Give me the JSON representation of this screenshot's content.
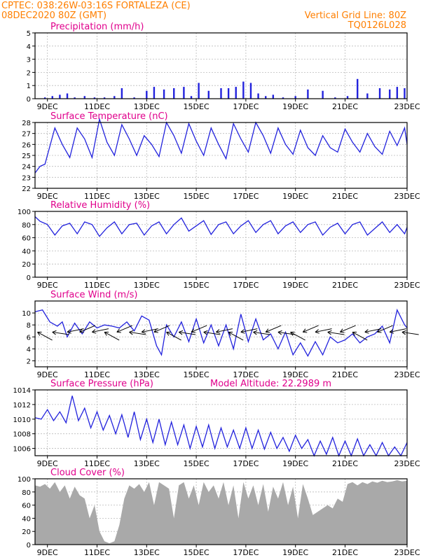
{
  "header": {
    "line1": "CPTEC:  038:26W-03:16S  FORTALEZA (CE)",
    "line2": "08DEC2020 80Z (GMT)",
    "grid_note": "Vertical Grid Line: 80Z",
    "code": "TQ0126L028"
  },
  "colors": {
    "line": "#2222dd",
    "cloud": "#a9a9a9",
    "header": "#ff7f00",
    "title": "#e0008c",
    "frame": "#000000",
    "grid": "#bbbbbb"
  },
  "chart_data": [
    {
      "type": "bar",
      "title": "Precipitation (mm/h)",
      "x_ticks": [
        "9DEC",
        "11DEC",
        "13DEC",
        "15DEC",
        "17DEC",
        "19DEC",
        "21DEC",
        "23DEC"
      ],
      "x_range": [
        8,
        23
      ],
      "ylim": [
        0,
        5
      ],
      "y_ticks": [
        0,
        1,
        2,
        3,
        4,
        5
      ],
      "grid": true,
      "series": [
        {
          "x": [
            8.4,
            8.7,
            9.0,
            9.3,
            9.6,
            10.0,
            10.4,
            10.8,
            11.2,
            11.5,
            12.0,
            12.5,
            12.8,
            13.2,
            13.6,
            14.0,
            14.3,
            14.6,
            15.0,
            15.5,
            15.8,
            16.1,
            16.4,
            16.7,
            17.0,
            17.3,
            17.6,
            18.0,
            18.5,
            19.0,
            19.6,
            20.1,
            20.6,
            21.0,
            21.4,
            21.9,
            22.3,
            22.6,
            22.9
          ],
          "values": [
            0.1,
            0.2,
            0.3,
            0.4,
            0.1,
            0.2,
            0.1,
            0.1,
            0.2,
            0.8,
            0.1,
            0.6,
            0.9,
            0.7,
            0.8,
            0.9,
            0.2,
            1.2,
            0.6,
            0.8,
            0.8,
            0.9,
            1.3,
            1.2,
            0.4,
            0.2,
            0.3,
            0.1,
            0.2,
            0.7,
            0.6,
            0.1,
            0.2,
            1.5,
            0.4,
            0.8,
            0.7,
            0.9,
            0.8
          ]
        }
      ]
    },
    {
      "type": "line",
      "title": "Surface Temperature (nC)",
      "x_ticks": [
        "9DEC",
        "11DEC",
        "13DEC",
        "15DEC",
        "17DEC",
        "19DEC",
        "21DEC",
        "23DEC"
      ],
      "x_range": [
        8,
        23
      ],
      "ylim": [
        22,
        28
      ],
      "y_ticks": [
        22,
        23,
        24,
        25,
        26,
        27,
        28
      ],
      "grid": true,
      "series": [
        {
          "x": [
            8.0,
            8.2,
            8.4,
            8.8,
            9.1,
            9.4,
            9.7,
            10.0,
            10.3,
            10.6,
            10.9,
            11.2,
            11.5,
            11.8,
            12.1,
            12.4,
            12.7,
            13.0,
            13.3,
            13.6,
            13.9,
            14.2,
            14.5,
            14.8,
            15.1,
            15.4,
            15.7,
            16.0,
            16.3,
            16.6,
            16.9,
            17.2,
            17.5,
            17.8,
            18.1,
            18.4,
            18.7,
            19.0,
            19.3,
            19.6,
            19.9,
            20.2,
            20.5,
            20.8,
            21.1,
            21.4,
            21.7,
            22.0,
            22.3,
            22.6,
            22.9,
            23.0
          ],
          "values": [
            23.4,
            24.0,
            24.2,
            27.5,
            26.0,
            24.8,
            27.5,
            26.5,
            24.8,
            28.3,
            26.2,
            25.0,
            27.8,
            26.5,
            25.0,
            26.8,
            26.0,
            24.9,
            28.0,
            26.8,
            25.2,
            27.9,
            26.3,
            25.0,
            27.5,
            26.0,
            24.7,
            27.9,
            26.5,
            25.3,
            28.0,
            26.8,
            25.2,
            27.5,
            26.0,
            25.1,
            27.3,
            25.7,
            25.0,
            26.8,
            25.7,
            25.3,
            27.4,
            26.2,
            25.3,
            27.0,
            25.8,
            25.1,
            27.2,
            25.9,
            27.5,
            26.0
          ]
        }
      ]
    },
    {
      "type": "line",
      "title": "Relative Humidity (%)",
      "x_ticks": [
        "9DEC",
        "11DEC",
        "13DEC",
        "15DEC",
        "17DEC",
        "19DEC",
        "21DEC",
        "23DEC"
      ],
      "x_range": [
        8,
        23
      ],
      "ylim": [
        0,
        100
      ],
      "y_ticks": [
        0,
        20,
        40,
        60,
        80,
        100
      ],
      "grid": true,
      "series": [
        {
          "x": [
            8.0,
            8.2,
            8.5,
            8.8,
            9.1,
            9.4,
            9.7,
            10.0,
            10.3,
            10.6,
            10.9,
            11.2,
            11.5,
            11.8,
            12.1,
            12.4,
            12.7,
            13.0,
            13.3,
            13.6,
            13.9,
            14.2,
            14.5,
            14.8,
            15.1,
            15.4,
            15.7,
            16.0,
            16.3,
            16.6,
            16.9,
            17.2,
            17.5,
            17.8,
            18.1,
            18.4,
            18.7,
            19.0,
            19.3,
            19.6,
            19.9,
            20.2,
            20.5,
            20.8,
            21.1,
            21.4,
            21.7,
            22.0,
            22.3,
            22.6,
            22.9,
            23.0
          ],
          "values": [
            92,
            85,
            80,
            64,
            78,
            82,
            66,
            84,
            80,
            62,
            75,
            84,
            66,
            80,
            82,
            64,
            78,
            84,
            66,
            80,
            90,
            70,
            78,
            86,
            65,
            80,
            84,
            66,
            78,
            86,
            68,
            80,
            86,
            66,
            78,
            84,
            68,
            80,
            84,
            64,
            76,
            82,
            66,
            80,
            84,
            64,
            74,
            84,
            68,
            80,
            66,
            76
          ]
        }
      ]
    },
    {
      "type": "line",
      "title": "Surface Wind (m/s)",
      "x_ticks": [
        "9DEC",
        "11DEC",
        "13DEC",
        "15DEC",
        "17DEC",
        "19DEC",
        "21DEC",
        "23DEC"
      ],
      "x_range": [
        8,
        23
      ],
      "ylim": [
        1,
        12
      ],
      "y_ticks": [
        2,
        4,
        6,
        8,
        10
      ],
      "grid": true,
      "series": [
        {
          "x": [
            8.0,
            8.3,
            8.6,
            8.9,
            9.1,
            9.3,
            9.6,
            9.9,
            10.2,
            10.5,
            10.8,
            11.1,
            11.4,
            11.7,
            12.0,
            12.3,
            12.6,
            12.9,
            13.1,
            13.3,
            13.6,
            13.9,
            14.2,
            14.5,
            14.8,
            15.1,
            15.4,
            15.7,
            16.0,
            16.3,
            16.6,
            16.9,
            17.2,
            17.5,
            17.8,
            18.1,
            18.4,
            18.7,
            19.0,
            19.3,
            19.6,
            19.9,
            20.2,
            20.5,
            20.8,
            21.1,
            21.4,
            21.7,
            22.0,
            22.3,
            22.6,
            22.9,
            23.0
          ],
          "values": [
            10.2,
            10.5,
            8.5,
            7.8,
            8.5,
            6.0,
            8.3,
            6.5,
            8.5,
            7.5,
            8.0,
            7.8,
            7.5,
            8.5,
            7.0,
            9.5,
            8.8,
            4.5,
            3.0,
            8.0,
            6.0,
            8.5,
            5.2,
            9.0,
            5.0,
            8.0,
            4.5,
            8.0,
            4.0,
            9.8,
            5.2,
            9.0,
            5.5,
            6.5,
            4.0,
            6.8,
            3.0,
            5.0,
            2.8,
            5.2,
            3.0,
            6.0,
            5.0,
            5.5,
            6.5,
            5.0,
            6.0,
            6.5,
            7.8,
            5.0,
            10.5,
            8.0,
            7.5
          ]
        }
      ],
      "wind_barbs_x": [
        8.1,
        8.7,
        9.3,
        9.8,
        10.3,
        10.8,
        11.3,
        11.8,
        12.3,
        12.8,
        13.3,
        13.8,
        14.3,
        14.8,
        15.3,
        15.8,
        16.3,
        16.8,
        17.3,
        17.8,
        18.3,
        18.8,
        19.3,
        19.8,
        20.3,
        20.8,
        21.3,
        21.8,
        22.3,
        22.8
      ]
    },
    {
      "type": "line",
      "title": "Surface Pressure (hPa)",
      "annotation": "Model Altitude: 22.2989  m",
      "x_ticks": [
        "9DEC",
        "11DEC",
        "13DEC",
        "15DEC",
        "17DEC",
        "19DEC",
        "21DEC",
        "23DEC"
      ],
      "x_range": [
        8,
        23
      ],
      "ylim": [
        1005,
        1014
      ],
      "y_ticks": [
        1006,
        1008,
        1010,
        1012,
        1014
      ],
      "grid": true,
      "series": [
        {
          "x": [
            8.0,
            8.25,
            8.5,
            8.75,
            9.0,
            9.25,
            9.5,
            9.75,
            10.0,
            10.25,
            10.5,
            10.75,
            11.0,
            11.25,
            11.5,
            11.75,
            12.0,
            12.25,
            12.5,
            12.75,
            13.0,
            13.25,
            13.5,
            13.75,
            14.0,
            14.25,
            14.5,
            14.75,
            15.0,
            15.25,
            15.5,
            15.75,
            16.0,
            16.25,
            16.5,
            16.75,
            17.0,
            17.25,
            17.5,
            17.75,
            18.0,
            18.25,
            18.5,
            18.75,
            19.0,
            19.25,
            19.5,
            19.75,
            20.0,
            20.25,
            20.5,
            20.75,
            21.0,
            21.25,
            21.5,
            21.75,
            22.0,
            22.25,
            22.5,
            22.75,
            23.0
          ],
          "values": [
            1010.2,
            1010.0,
            1011.3,
            1009.8,
            1011.0,
            1009.5,
            1013.2,
            1009.8,
            1011.5,
            1008.8,
            1011.0,
            1008.5,
            1010.5,
            1008.0,
            1010.6,
            1007.5,
            1011.0,
            1007.2,
            1010.0,
            1006.8,
            1010.0,
            1006.5,
            1009.6,
            1006.5,
            1009.2,
            1006.0,
            1009.0,
            1006.2,
            1009.2,
            1006.0,
            1008.8,
            1006.2,
            1008.5,
            1006.0,
            1008.8,
            1006.0,
            1008.5,
            1005.9,
            1008.2,
            1006.0,
            1007.5,
            1005.6,
            1007.8,
            1006.0,
            1007.2,
            1005.0,
            1007.0,
            1005.2,
            1007.5,
            1005.0,
            1007.0,
            1005.0,
            1007.3,
            1005.0,
            1006.5,
            1005.0,
            1006.8,
            1005.0,
            1006.2,
            1005.0,
            1006.8
          ]
        }
      ]
    },
    {
      "type": "area",
      "title": "Cloud Cover (%)",
      "x_ticks": [
        "9DEC",
        "11DEC",
        "13DEC",
        "15DEC",
        "17DEC",
        "19DEC",
        "21DEC",
        "23DEC"
      ],
      "x_range": [
        8,
        23
      ],
      "ylim": [
        0,
        100
      ],
      "y_ticks": [
        0,
        20,
        40,
        60,
        80,
        100
      ],
      "grid": true,
      "series": [
        {
          "x": [
            8.0,
            8.2,
            8.4,
            8.6,
            8.8,
            9.0,
            9.2,
            9.4,
            9.6,
            9.8,
            10.0,
            10.2,
            10.4,
            10.6,
            10.8,
            11.0,
            11.2,
            11.4,
            11.6,
            11.8,
            12.0,
            12.2,
            12.4,
            12.6,
            12.8,
            13.0,
            13.2,
            13.4,
            13.6,
            13.8,
            14.0,
            14.2,
            14.4,
            14.6,
            14.8,
            15.0,
            15.2,
            15.4,
            15.6,
            15.8,
            16.0,
            16.2,
            16.4,
            16.6,
            16.8,
            17.0,
            17.2,
            17.4,
            17.6,
            17.8,
            18.0,
            18.2,
            18.4,
            18.6,
            18.8,
            19.0,
            19.2,
            19.4,
            19.6,
            19.8,
            20.0,
            20.2,
            20.4,
            20.6,
            20.8,
            21.0,
            21.2,
            21.4,
            21.6,
            21.8,
            22.0,
            22.2,
            22.4,
            22.6,
            22.8,
            23.0
          ],
          "values": [
            90,
            88,
            92,
            85,
            95,
            80,
            90,
            70,
            88,
            75,
            70,
            40,
            60,
            20,
            5,
            2,
            5,
            30,
            70,
            90,
            85,
            92,
            80,
            95,
            60,
            95,
            90,
            85,
            40,
            90,
            95,
            70,
            90,
            60,
            95,
            80,
            90,
            70,
            95,
            60,
            90,
            40,
            95,
            70,
            90,
            60,
            92,
            50,
            88,
            70,
            95,
            60,
            88,
            40,
            92,
            70,
            45,
            50,
            55,
            60,
            55,
            70,
            65,
            92,
            95,
            90,
            95,
            92,
            96,
            94,
            97,
            95,
            96,
            98,
            96,
            97
          ]
        }
      ]
    }
  ]
}
